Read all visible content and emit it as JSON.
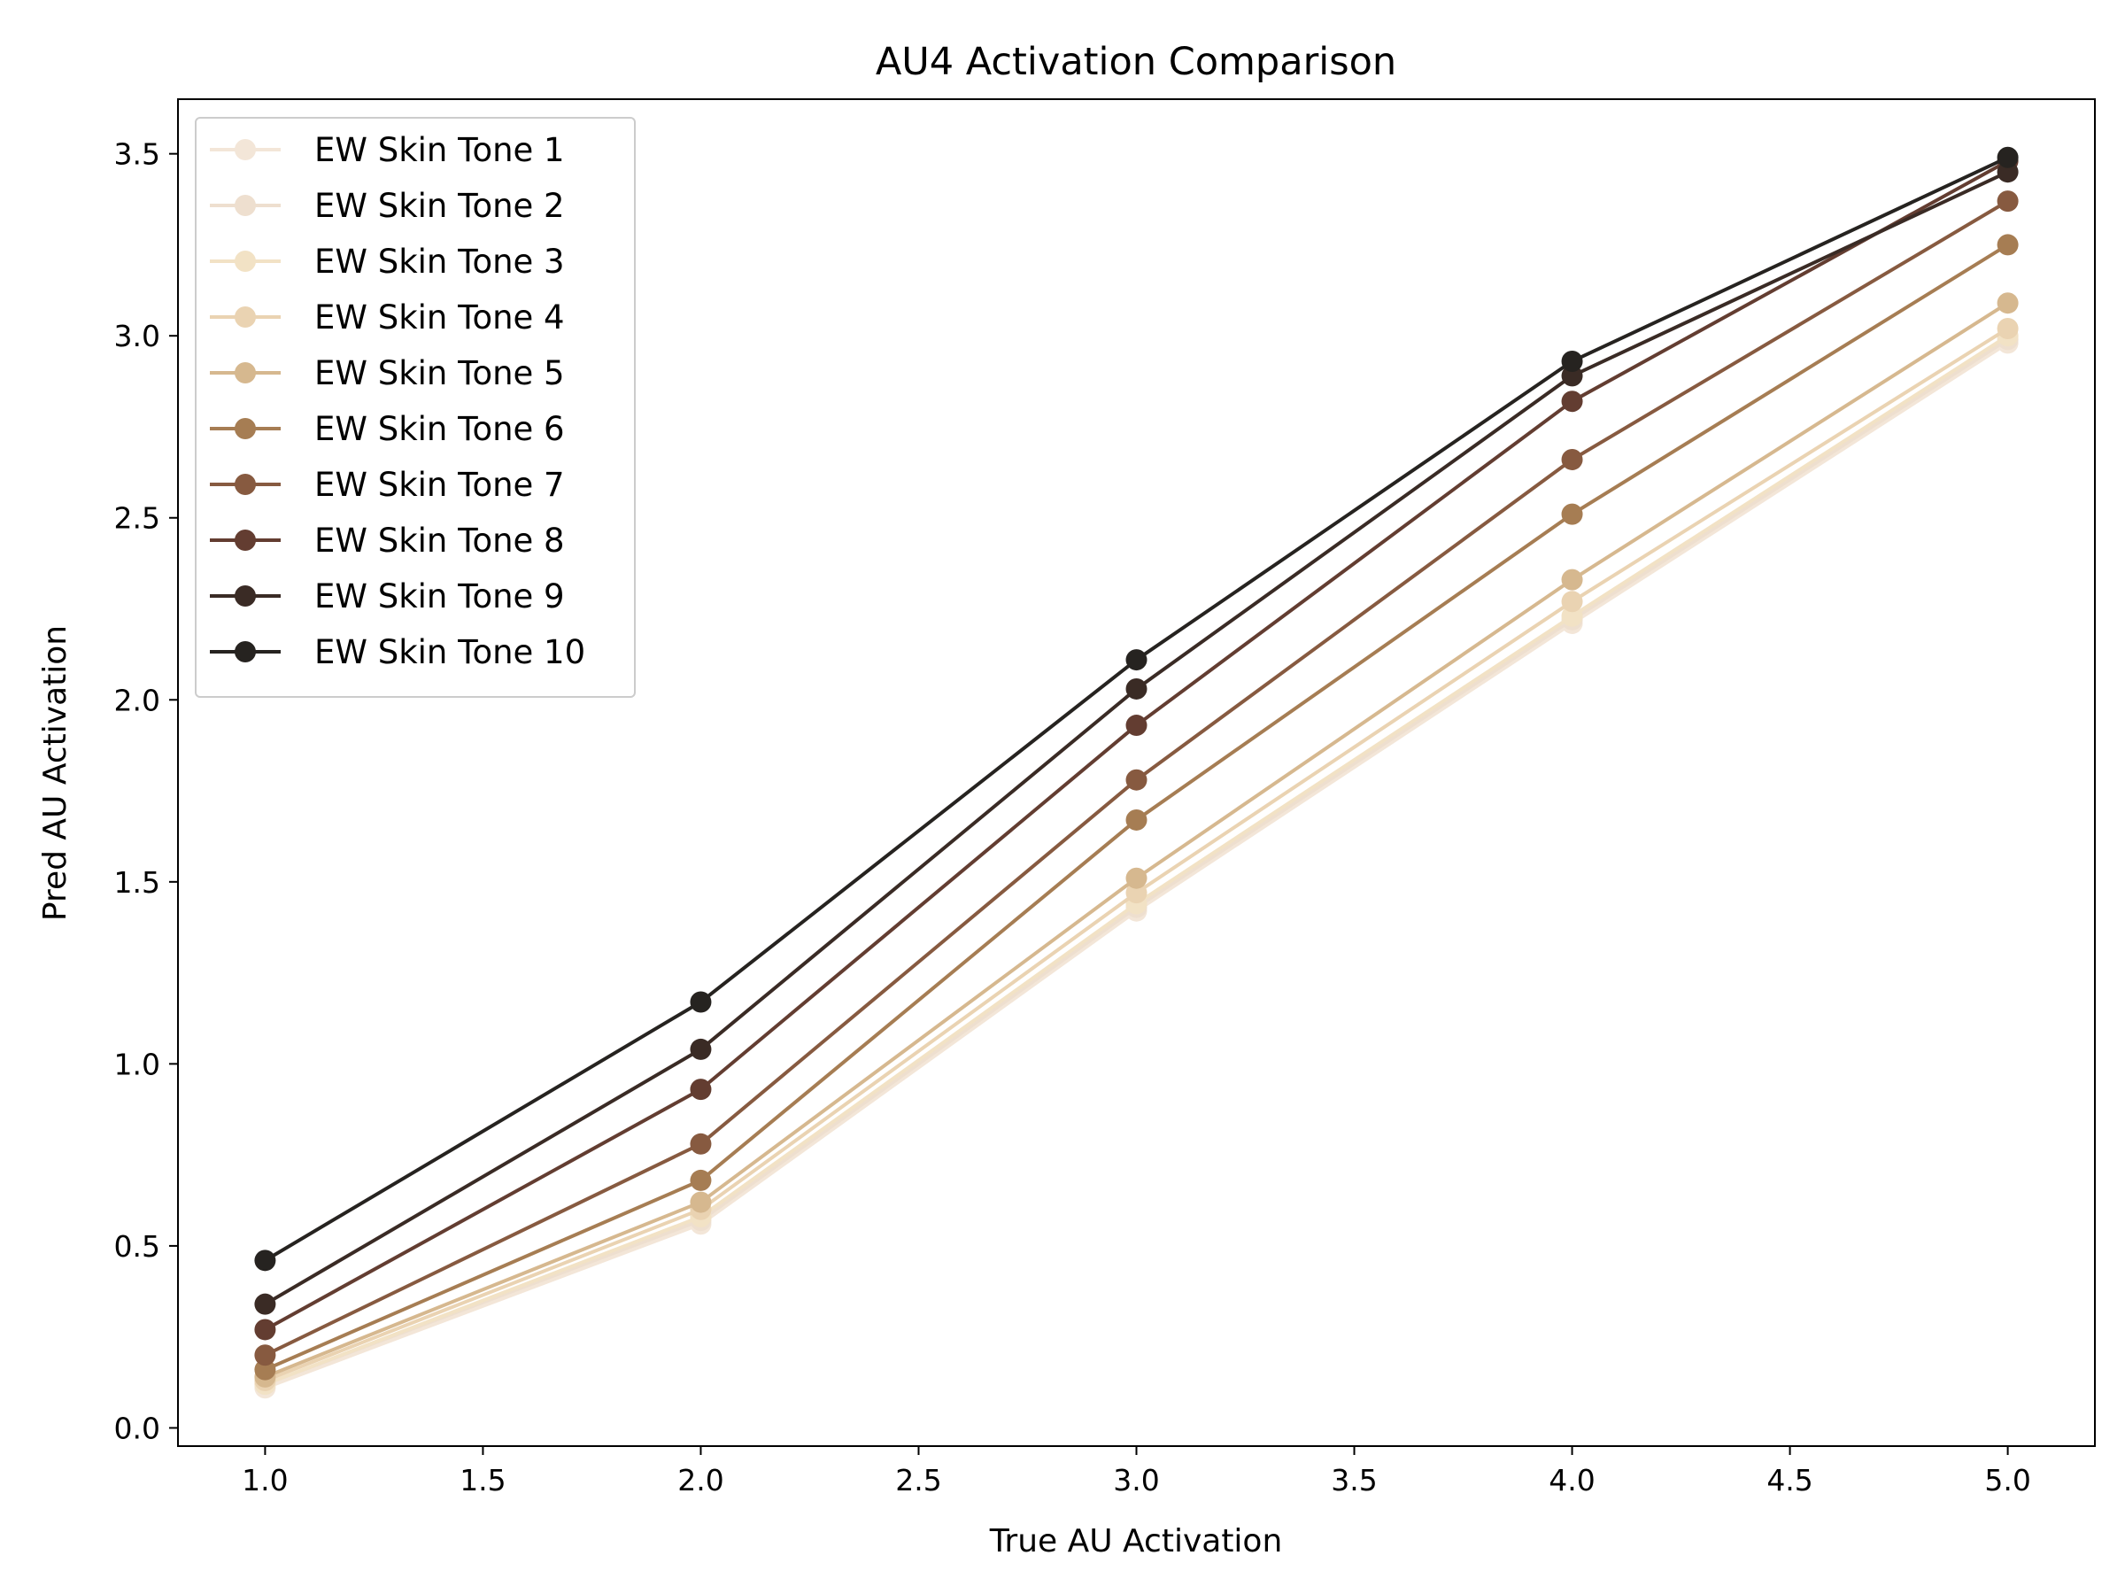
{
  "chart_data": {
    "type": "line",
    "title": "AU4 Activation Comparison",
    "xlabel": "True AU Activation",
    "ylabel": "Pred AU Activation",
    "x": [
      1.0,
      2.0,
      3.0,
      4.0,
      5.0
    ],
    "xlim": [
      0.8,
      5.2
    ],
    "ylim": [
      -0.05,
      3.65
    ],
    "xticks": [
      "1.0",
      "1.5",
      "2.0",
      "2.5",
      "3.0",
      "3.5",
      "4.0",
      "4.5",
      "5.0"
    ],
    "yticks": [
      "0.0",
      "0.5",
      "1.0",
      "1.5",
      "2.0",
      "2.5",
      "3.0",
      "3.5"
    ],
    "grid": false,
    "legend_position": "top-left",
    "series": [
      {
        "name": "EW Skin Tone 1",
        "color": "#f3e6d8",
        "values": [
          0.11,
          0.56,
          1.42,
          2.21,
          2.98
        ]
      },
      {
        "name": "EW Skin Tone 2",
        "color": "#eedfcf",
        "values": [
          0.12,
          0.57,
          1.43,
          2.22,
          2.99
        ]
      },
      {
        "name": "EW Skin Tone 3",
        "color": "#f2e2c5",
        "values": [
          0.12,
          0.58,
          1.44,
          2.23,
          3.0
        ]
      },
      {
        "name": "EW Skin Tone 4",
        "color": "#ead3b2",
        "values": [
          0.13,
          0.6,
          1.47,
          2.27,
          3.02
        ]
      },
      {
        "name": "EW Skin Tone 5",
        "color": "#d6b88f",
        "values": [
          0.14,
          0.62,
          1.51,
          2.33,
          3.09
        ]
      },
      {
        "name": "EW Skin Tone 6",
        "color": "#a67d53",
        "values": [
          0.16,
          0.68,
          1.67,
          2.51,
          3.25
        ]
      },
      {
        "name": "EW Skin Tone 7",
        "color": "#875a40",
        "values": [
          0.2,
          0.78,
          1.78,
          2.66,
          3.37
        ]
      },
      {
        "name": "EW Skin Tone 8",
        "color": "#633d31",
        "values": [
          0.27,
          0.93,
          1.93,
          2.82,
          3.48
        ]
      },
      {
        "name": "EW Skin Tone 9",
        "color": "#3a2b25",
        "values": [
          0.34,
          1.04,
          2.03,
          2.89,
          3.45
        ]
      },
      {
        "name": "EW Skin Tone 10",
        "color": "#262320",
        "values": [
          0.46,
          1.17,
          2.11,
          2.93,
          3.49
        ]
      }
    ]
  }
}
